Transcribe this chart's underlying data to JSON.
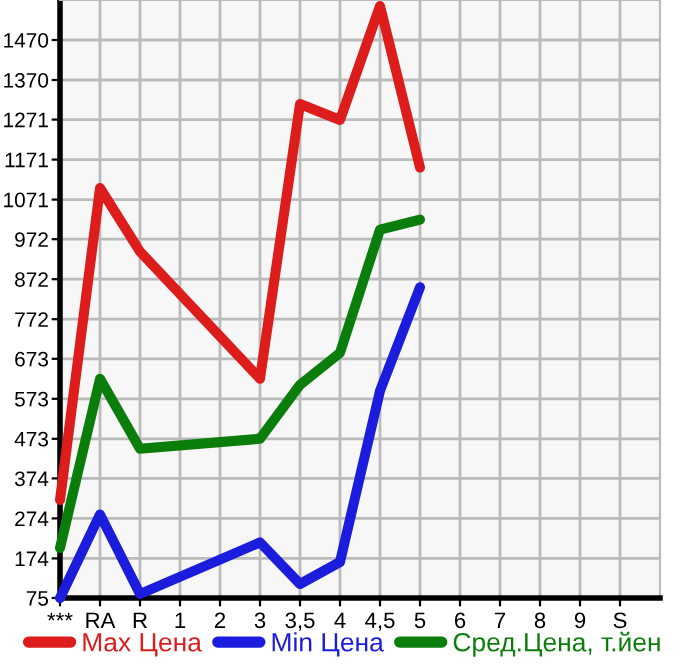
{
  "chart_data": {
    "type": "line",
    "categories": [
      "***",
      "RA",
      "R",
      "1",
      "2",
      "3",
      "3,5",
      "4",
      "4,5",
      "5",
      "6",
      "7",
      "8",
      "9",
      "S"
    ],
    "series": [
      {
        "name": "Max Цена",
        "color": "#dd1c1c",
        "values": [
          320,
          1100,
          941,
          null,
          null,
          623,
          1310,
          1270,
          1555,
          1151,
          null,
          null,
          null,
          null,
          null
        ]
      },
      {
        "name": "Min Цена",
        "color": "#1c1cdd",
        "values": [
          75,
          284,
          85,
          null,
          null,
          214,
          110,
          165,
          593,
          852,
          null,
          null,
          null,
          null,
          null
        ]
      },
      {
        "name": "Сред.Цена, т.йен",
        "color": "#0a7d0a",
        "values": [
          200,
          623,
          448,
          null,
          null,
          473,
          608,
          688,
          996,
          1021,
          null,
          null,
          null,
          null,
          null
        ]
      }
    ],
    "ylim": [
      75,
      1570
    ],
    "yticks": [
      75,
      174,
      274,
      374,
      473,
      573,
      673,
      772,
      872,
      972,
      1071,
      1171,
      1271,
      1370,
      1470
    ],
    "grid": true,
    "legend": "bottom",
    "marker": "none",
    "line_style": "solid"
  }
}
